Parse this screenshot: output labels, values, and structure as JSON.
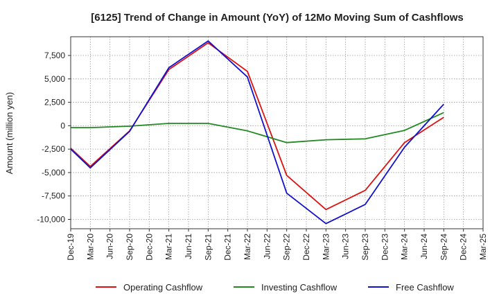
{
  "chart_data": {
    "type": "line",
    "title": "[6125]  Trend of Change in Amount (YoY) of 12Mo Moving Sum of Cashflows",
    "xlabel": "",
    "ylabel": "Amount (million yen)",
    "categories": [
      "Dec-19",
      "Mar-20",
      "Jun-20",
      "Sep-20",
      "Dec-20",
      "Mar-21",
      "Jun-21",
      "Sep-21",
      "Dec-21",
      "Mar-22",
      "Jun-22",
      "Sep-22",
      "Dec-22",
      "Mar-23",
      "Jun-23",
      "Sep-23",
      "Dec-23",
      "Mar-24",
      "Jun-24",
      "Sep-24",
      "Dec-24",
      "Mar-25"
    ],
    "ylim": [
      -11000,
      9500
    ],
    "yticks": [
      7500,
      5000,
      2500,
      0,
      -2500,
      -5000,
      -7500,
      -10000
    ],
    "ytick_labels": [
      "7,500",
      "5,000",
      "2,500",
      "0",
      "-2,500",
      "-5,000",
      "-7,500",
      "-10,000"
    ],
    "grid": true,
    "legend_position": "bottom",
    "series": [
      {
        "name": "Operating Cashflow",
        "color": "#dd1111",
        "values": [
          -2400,
          -4350,
          null,
          -550,
          null,
          6000,
          null,
          8850,
          null,
          5800,
          null,
          -5300,
          null,
          -8950,
          null,
          -6900,
          null,
          -1800,
          null,
          900,
          null,
          null
        ]
      },
      {
        "name": "Investing Cashflow",
        "color": "#228822",
        "values": [
          -200,
          -200,
          null,
          -50,
          null,
          250,
          null,
          250,
          null,
          -550,
          null,
          -1800,
          null,
          -1500,
          null,
          -1400,
          null,
          -500,
          null,
          1400,
          null,
          null
        ]
      },
      {
        "name": "Free Cashflow",
        "color": "#1111cc",
        "values": [
          -2500,
          -4500,
          null,
          -600,
          null,
          6200,
          null,
          9050,
          null,
          5200,
          null,
          -7200,
          null,
          -10450,
          null,
          -8400,
          null,
          -2300,
          null,
          2300,
          null,
          null
        ]
      }
    ]
  }
}
